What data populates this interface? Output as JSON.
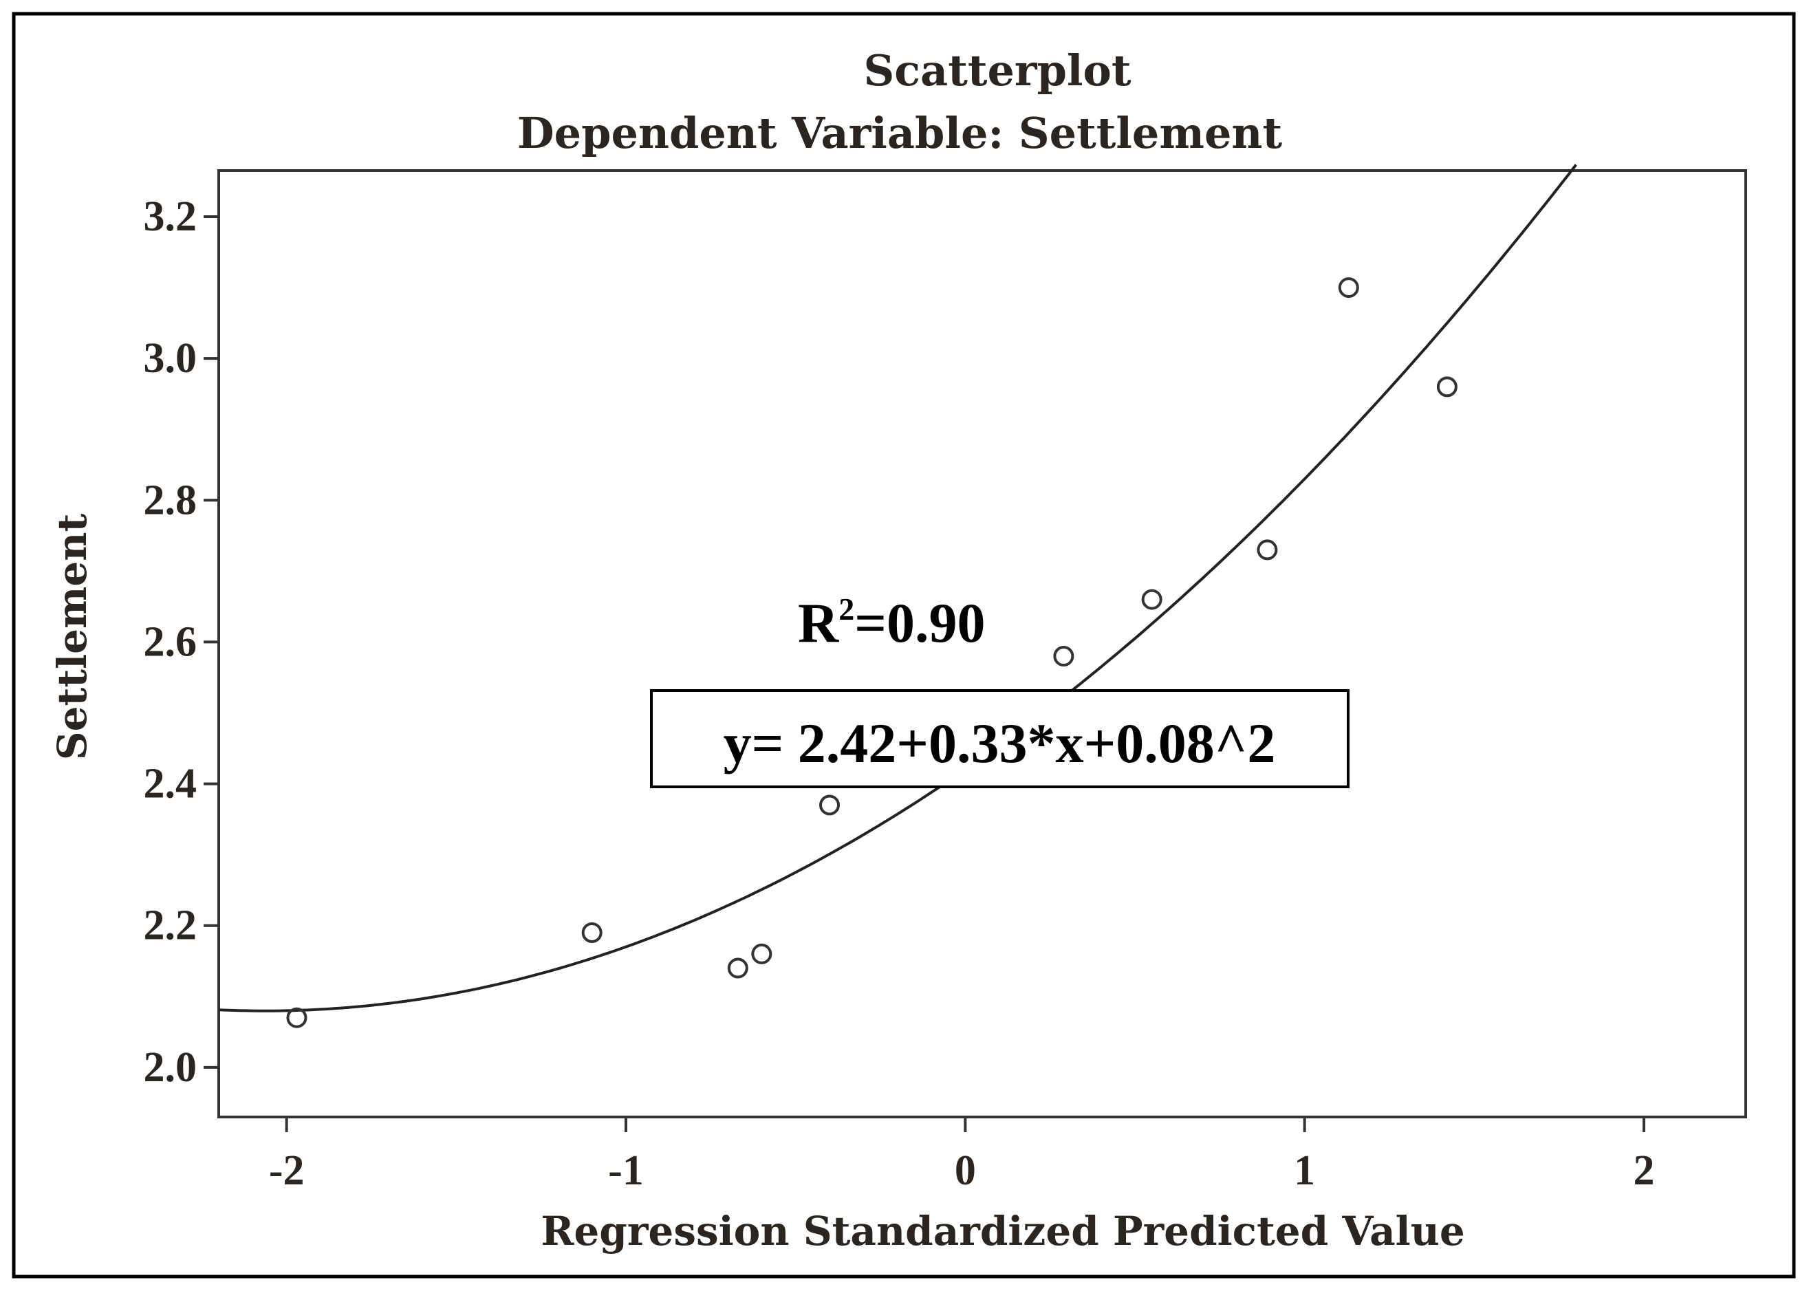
{
  "chart_data": {
    "type": "scatter",
    "title": "Scatterplot",
    "subtitle": "Dependent Variable: Settlement",
    "xlabel": "Regression Standardized Predicted Value",
    "ylabel": "Settlement",
    "xlim": [
      -2.2,
      2.3
    ],
    "ylim": [
      1.93,
      3.265
    ],
    "x_ticks": [
      -2,
      -1,
      0,
      1,
      2
    ],
    "x_tick_labels": [
      "-2",
      "-1",
      "0",
      "1",
      "2"
    ],
    "y_ticks": [
      2.0,
      2.2,
      2.4,
      2.6,
      2.8,
      3.0,
      3.2
    ],
    "y_tick_labels": [
      "2.0",
      "2.2",
      "2.4",
      "2.6",
      "2.8",
      "3.0",
      "3.2"
    ],
    "grid": false,
    "points": [
      {
        "x": -1.97,
        "y": 2.07
      },
      {
        "x": -1.1,
        "y": 2.19
      },
      {
        "x": -0.67,
        "y": 2.14
      },
      {
        "x": -0.6,
        "y": 2.16
      },
      {
        "x": -0.4,
        "y": 2.37
      },
      {
        "x": 0.29,
        "y": 2.58
      },
      {
        "x": 0.55,
        "y": 2.66
      },
      {
        "x": 0.89,
        "y": 2.73
      },
      {
        "x": 1.13,
        "y": 3.1
      },
      {
        "x": 1.42,
        "y": 2.96
      }
    ],
    "fit_curve": {
      "intercept": 2.42,
      "linear": 0.33,
      "quadratic": 0.08,
      "x_range": [
        -2.2,
        1.8
      ]
    },
    "annotations": {
      "r2_main": "R",
      "r2_sup": "2",
      "r2_value": "=0.90",
      "equation": "y= 2.42+0.33*x+0.08^2"
    },
    "colors": {
      "axis": "#333333",
      "points": "#333333",
      "curve": "#222222",
      "text": "#2a2520"
    }
  }
}
